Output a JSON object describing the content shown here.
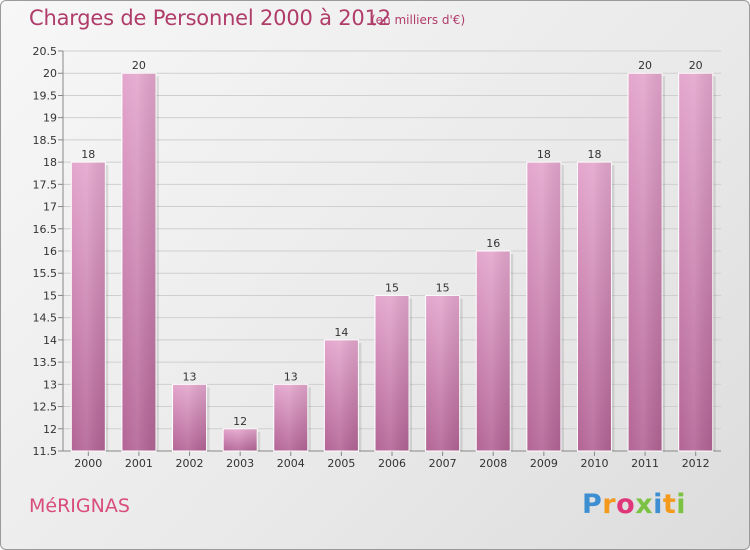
{
  "title": "Charges de Personnel 2000 à 2012",
  "subtitle": "(en milliers d'€)",
  "city": "MéRIGNAS",
  "logo": {
    "letters": [
      "P",
      "r",
      "o",
      "x",
      "i",
      "t",
      "i"
    ],
    "colors": [
      "#3d8fd1",
      "#f39a1c",
      "#e0367a",
      "#7cc242",
      "#3d8fd1",
      "#f39a1c",
      "#7cc242"
    ]
  },
  "colors": {
    "bar_top": "#e4a6cd",
    "bar_bottom": "#b36495",
    "title": "#b03c6a",
    "city": "#d84d7b"
  },
  "chart_data": {
    "type": "bar",
    "categories": [
      "2000",
      "2001",
      "2002",
      "2003",
      "2004",
      "2005",
      "2006",
      "2007",
      "2008",
      "2009",
      "2010",
      "2011",
      "2012"
    ],
    "values": [
      18,
      20,
      13,
      12,
      13,
      14,
      15,
      15,
      16,
      18,
      18,
      20,
      20
    ],
    "value_labels": [
      "18",
      "20",
      "13",
      "12",
      "13",
      "14",
      "15",
      "15",
      "16",
      "18",
      "18",
      "20",
      "20"
    ],
    "ylim": [
      11.5,
      20.5
    ],
    "yticks": [
      11.5,
      12,
      12.5,
      13,
      13.5,
      14,
      14.5,
      15,
      15.5,
      16,
      16.5,
      17,
      17.5,
      18,
      18.5,
      19,
      19.5,
      20,
      20.5
    ],
    "ytick_labels": [
      "11.5",
      "12",
      "12.5",
      "13",
      "13.5",
      "14",
      "14.5",
      "15",
      "15.5",
      "16",
      "16.5",
      "17",
      "17.5",
      "18",
      "18.5",
      "19",
      "19.5",
      "20",
      "20.5"
    ],
    "title": "Charges de Personnel 2000 à 2012",
    "xlabel": "",
    "ylabel": "",
    "grid": true
  }
}
